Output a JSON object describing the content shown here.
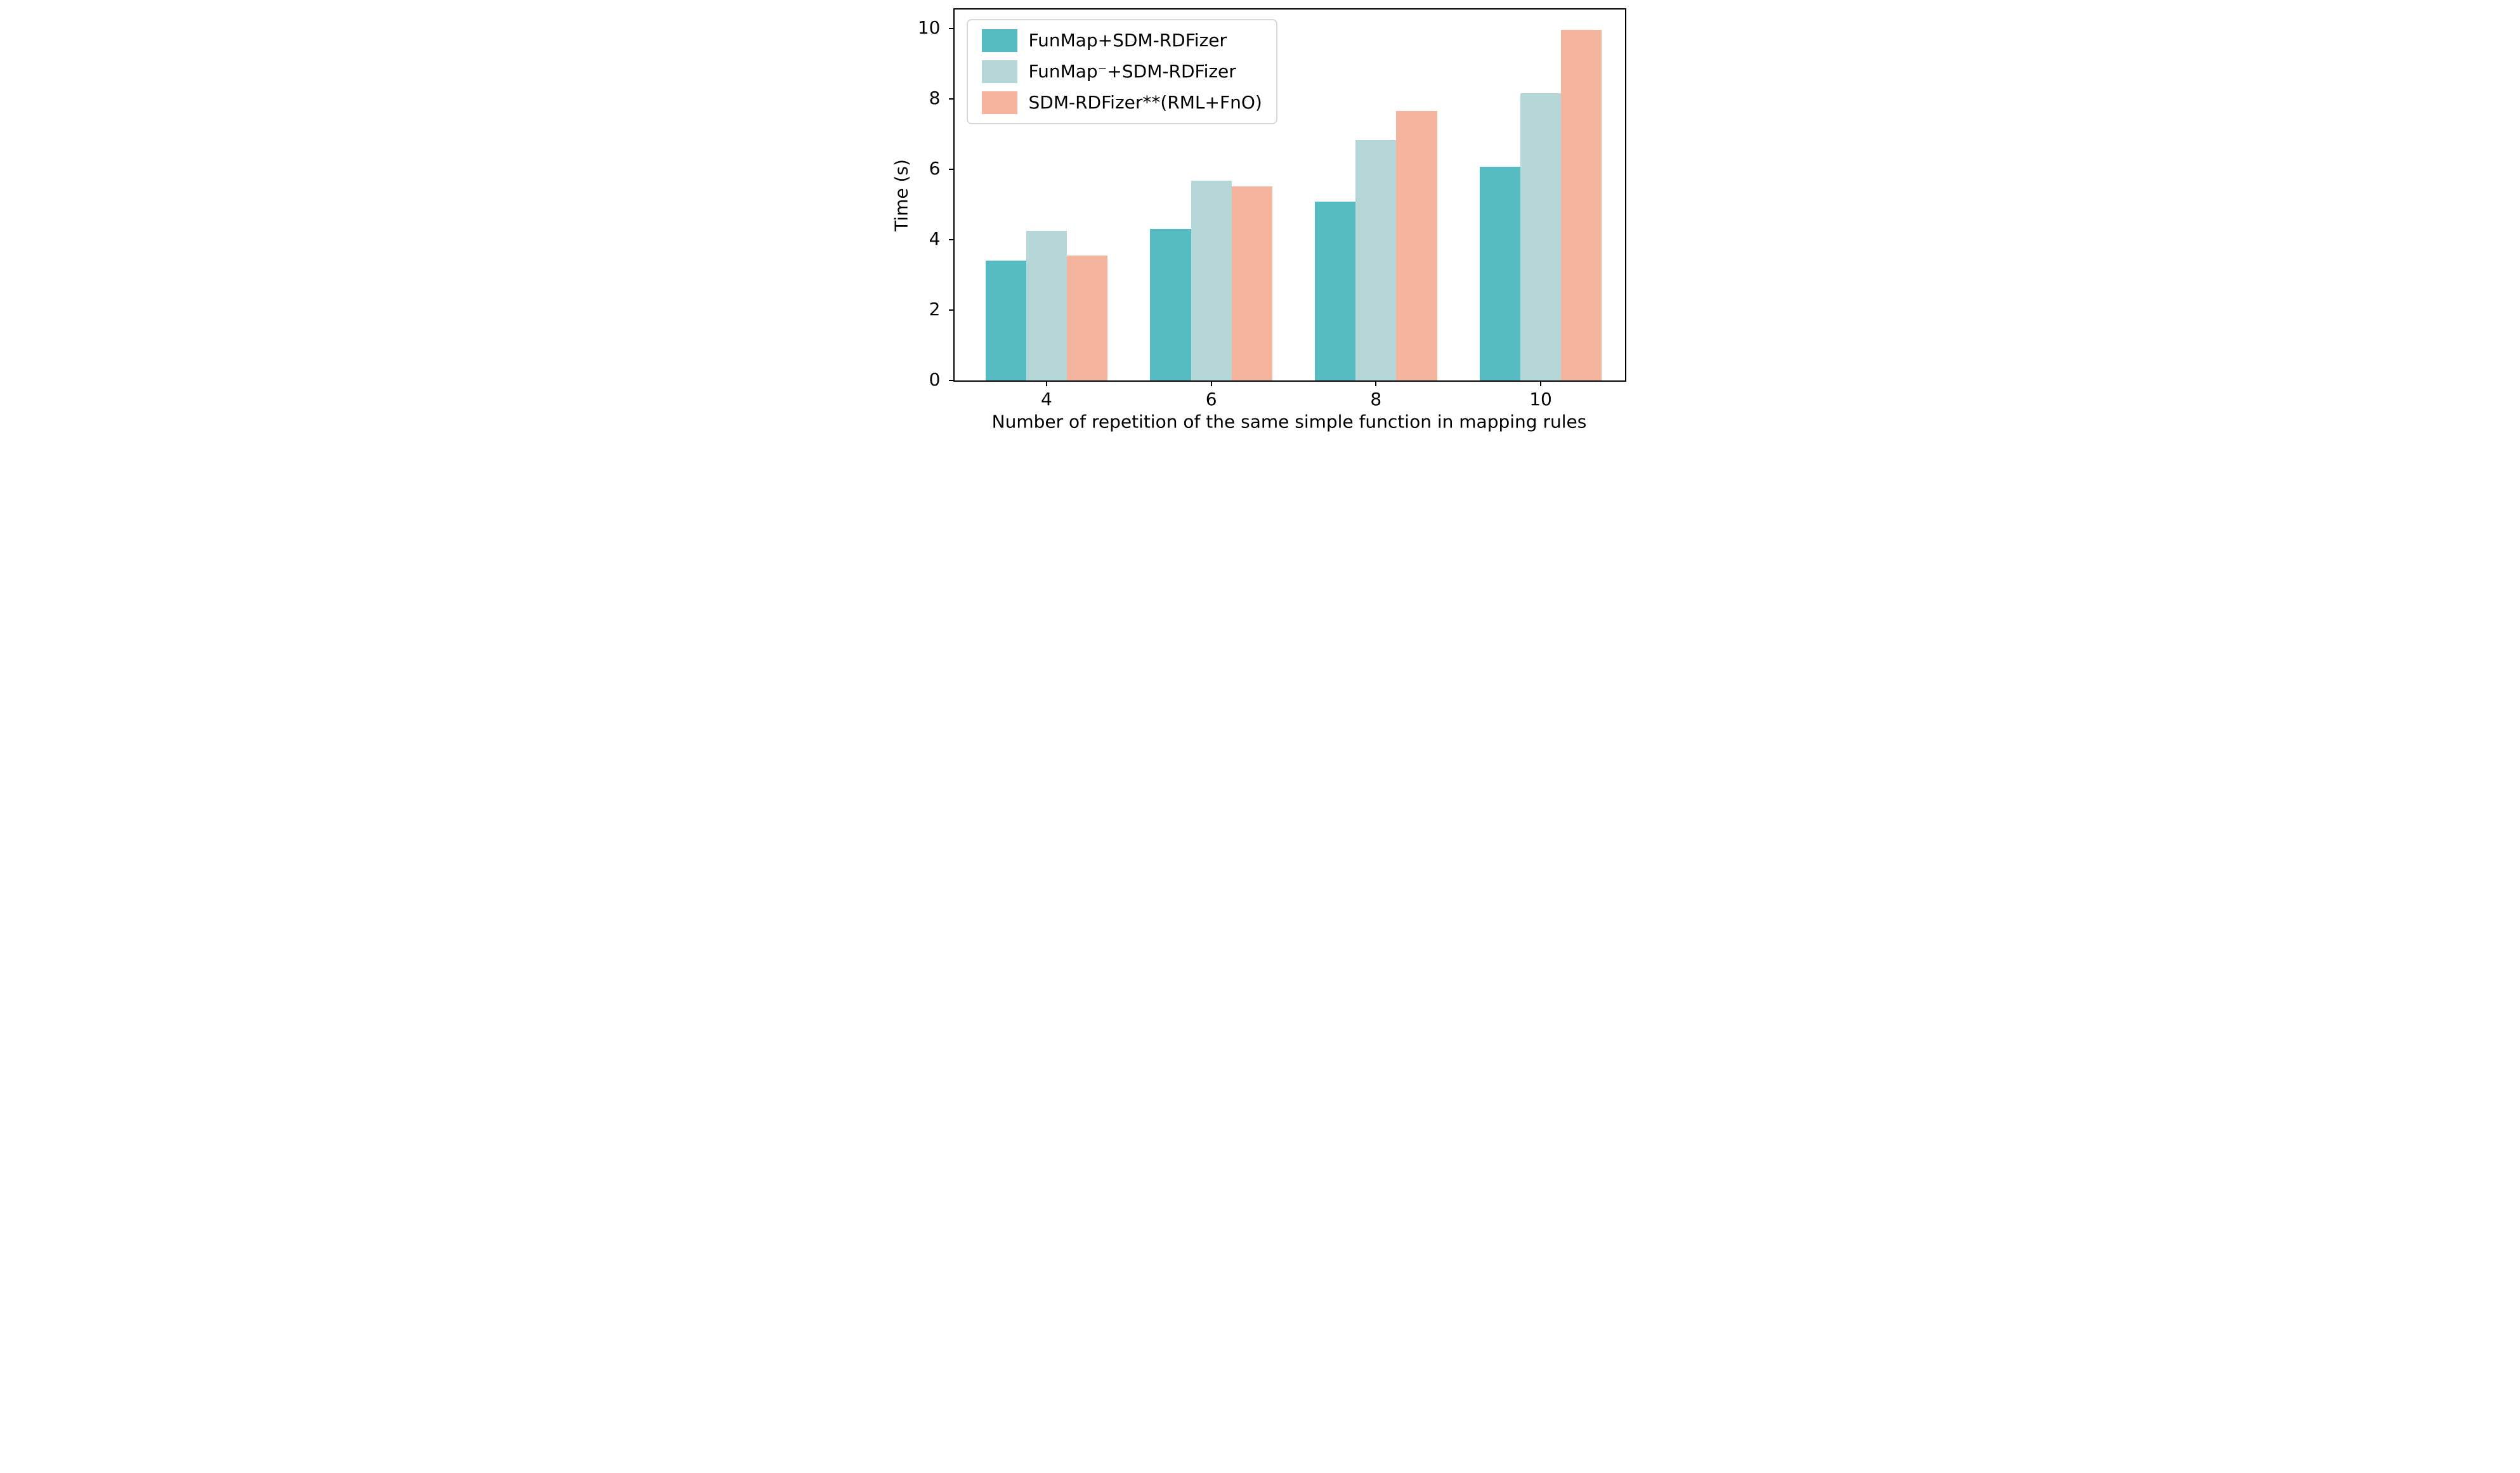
{
  "figure": {
    "background": "#ffffff",
    "frame_color": "#000000",
    "legend_border_color": "#d8d8d8"
  },
  "chart_data": {
    "type": "bar",
    "title": "",
    "xlabel": "Number of repetition of the same simple function in mapping rules",
    "ylabel": "Time (s)",
    "categories": [
      "4",
      "6",
      "8",
      "10"
    ],
    "series": [
      {
        "name": "FunMap+SDM-RDFizer",
        "color": "#57bcc2",
        "values": [
          3.4,
          4.3,
          5.08,
          6.08
        ]
      },
      {
        "name": "FunMap⁻+SDM-RDFizer",
        "color": "#b5d7d8",
        "values": [
          4.25,
          5.67,
          6.82,
          8.16
        ]
      },
      {
        "name": "SDM-RDFizer**(RML+FnO)",
        "color": "#f4b49e",
        "values": [
          3.55,
          5.52,
          7.65,
          9.96
        ]
      }
    ],
    "yticks": [
      0,
      2,
      4,
      6,
      8,
      10
    ],
    "ylim": [
      0,
      10.54
    ],
    "grid": false,
    "legend_position": "upper left"
  }
}
